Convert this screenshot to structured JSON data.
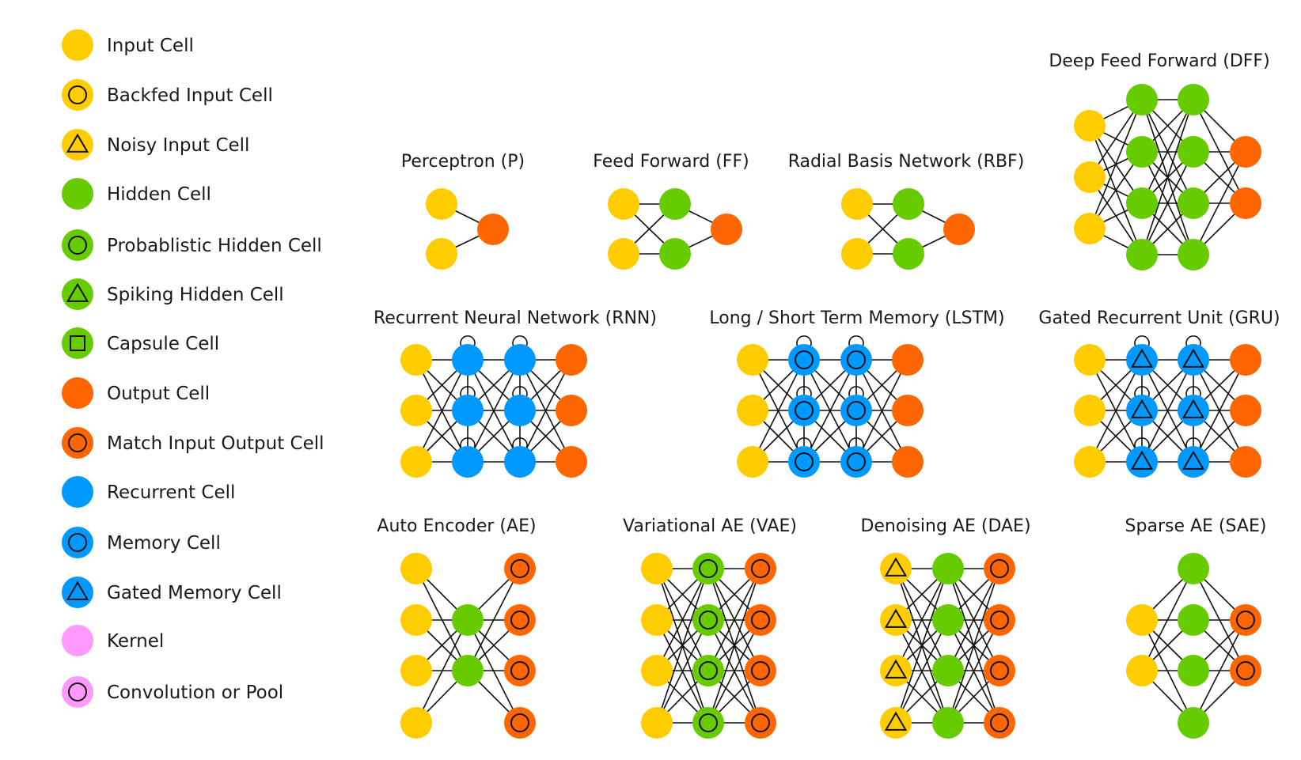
{
  "colors": {
    "input": "#ffcc00",
    "hidden": "#66cc00",
    "output": "#ff6600",
    "recurrent": "#0099ff",
    "kernel": "#ff99ff"
  },
  "legend": [
    {
      "label": "Input Cell",
      "cell": "input",
      "symbol": "none"
    },
    {
      "label": "Backfed Input Cell",
      "cell": "input",
      "symbol": "circle"
    },
    {
      "label": "Noisy Input Cell",
      "cell": "input",
      "symbol": "triangle"
    },
    {
      "label": "Hidden Cell",
      "cell": "hidden",
      "symbol": "none"
    },
    {
      "label": "Probablistic Hidden Cell",
      "cell": "hidden",
      "symbol": "circle"
    },
    {
      "label": "Spiking Hidden Cell",
      "cell": "hidden",
      "symbol": "triangle"
    },
    {
      "label": "Capsule Cell",
      "cell": "hidden",
      "symbol": "square"
    },
    {
      "label": "Output Cell",
      "cell": "output",
      "symbol": "none"
    },
    {
      "label": "Match Input Output Cell",
      "cell": "output",
      "symbol": "circle"
    },
    {
      "label": "Recurrent Cell",
      "cell": "recurrent",
      "symbol": "none"
    },
    {
      "label": "Memory Cell",
      "cell": "recurrent",
      "symbol": "circle"
    },
    {
      "label": "Gated Memory Cell",
      "cell": "recurrent",
      "symbol": "triangle"
    },
    {
      "label": "Kernel",
      "cell": "kernel",
      "symbol": "none"
    },
    {
      "label": "Convolution or Pool",
      "cell": "kernel",
      "symbol": "circle"
    }
  ],
  "networks": [
    {
      "id": "p",
      "title": "Perceptron (P)",
      "layers": [
        {
          "n": 2,
          "cell": "input",
          "symbol": "none"
        },
        {
          "n": 1,
          "cell": "output",
          "symbol": "none"
        }
      ]
    },
    {
      "id": "ff",
      "title": "Feed Forward (FF)",
      "layers": [
        {
          "n": 2,
          "cell": "input",
          "symbol": "none"
        },
        {
          "n": 2,
          "cell": "hidden",
          "symbol": "none"
        },
        {
          "n": 1,
          "cell": "output",
          "symbol": "none"
        }
      ]
    },
    {
      "id": "rbf",
      "title": "Radial Basis Network (RBF)",
      "layers": [
        {
          "n": 2,
          "cell": "input",
          "symbol": "none"
        },
        {
          "n": 2,
          "cell": "hidden",
          "symbol": "none"
        },
        {
          "n": 1,
          "cell": "output",
          "symbol": "none"
        }
      ]
    },
    {
      "id": "dff",
      "title": "Deep Feed Forward (DFF)",
      "layers": [
        {
          "n": 3,
          "cell": "input",
          "symbol": "none"
        },
        {
          "n": 4,
          "cell": "hidden",
          "symbol": "none"
        },
        {
          "n": 4,
          "cell": "hidden",
          "symbol": "none"
        },
        {
          "n": 2,
          "cell": "output",
          "symbol": "none"
        }
      ]
    },
    {
      "id": "rnn",
      "title": "Recurrent Neural Network (RNN)",
      "layers": [
        {
          "n": 3,
          "cell": "input",
          "symbol": "none"
        },
        {
          "n": 3,
          "cell": "recurrent",
          "symbol": "none"
        },
        {
          "n": 3,
          "cell": "recurrent",
          "symbol": "none"
        },
        {
          "n": 3,
          "cell": "output",
          "symbol": "none"
        }
      ]
    },
    {
      "id": "lstm",
      "title": "Long / Short Term Memory (LSTM)",
      "layers": [
        {
          "n": 3,
          "cell": "input",
          "symbol": "none"
        },
        {
          "n": 3,
          "cell": "recurrent",
          "symbol": "circle"
        },
        {
          "n": 3,
          "cell": "recurrent",
          "symbol": "circle"
        },
        {
          "n": 3,
          "cell": "output",
          "symbol": "none"
        }
      ]
    },
    {
      "id": "gru",
      "title": "Gated Recurrent Unit (GRU)",
      "layers": [
        {
          "n": 3,
          "cell": "input",
          "symbol": "none"
        },
        {
          "n": 3,
          "cell": "recurrent",
          "symbol": "triangle"
        },
        {
          "n": 3,
          "cell": "recurrent",
          "symbol": "triangle"
        },
        {
          "n": 3,
          "cell": "output",
          "symbol": "none"
        }
      ]
    },
    {
      "id": "ae",
      "title": "Auto Encoder (AE)",
      "layers": [
        {
          "n": 4,
          "cell": "input",
          "symbol": "none"
        },
        {
          "n": 2,
          "cell": "hidden",
          "symbol": "none"
        },
        {
          "n": 4,
          "cell": "output",
          "symbol": "circle"
        }
      ]
    },
    {
      "id": "vae",
      "title": "Variational AE (VAE)",
      "layers": [
        {
          "n": 4,
          "cell": "input",
          "symbol": "none"
        },
        {
          "n": 4,
          "cell": "hidden",
          "symbol": "circle"
        },
        {
          "n": 4,
          "cell": "output",
          "symbol": "circle"
        }
      ]
    },
    {
      "id": "dae",
      "title": "Denoising AE (DAE)",
      "layers": [
        {
          "n": 4,
          "cell": "input",
          "symbol": "triangle"
        },
        {
          "n": 4,
          "cell": "hidden",
          "symbol": "none"
        },
        {
          "n": 4,
          "cell": "output",
          "symbol": "circle"
        }
      ]
    },
    {
      "id": "sae",
      "title": "Sparse AE (SAE)",
      "layers": [
        {
          "n": 2,
          "cell": "input",
          "symbol": "none"
        },
        {
          "n": 4,
          "cell": "hidden",
          "symbol": "none"
        },
        {
          "n": 2,
          "cell": "output",
          "symbol": "circle"
        }
      ]
    }
  ]
}
